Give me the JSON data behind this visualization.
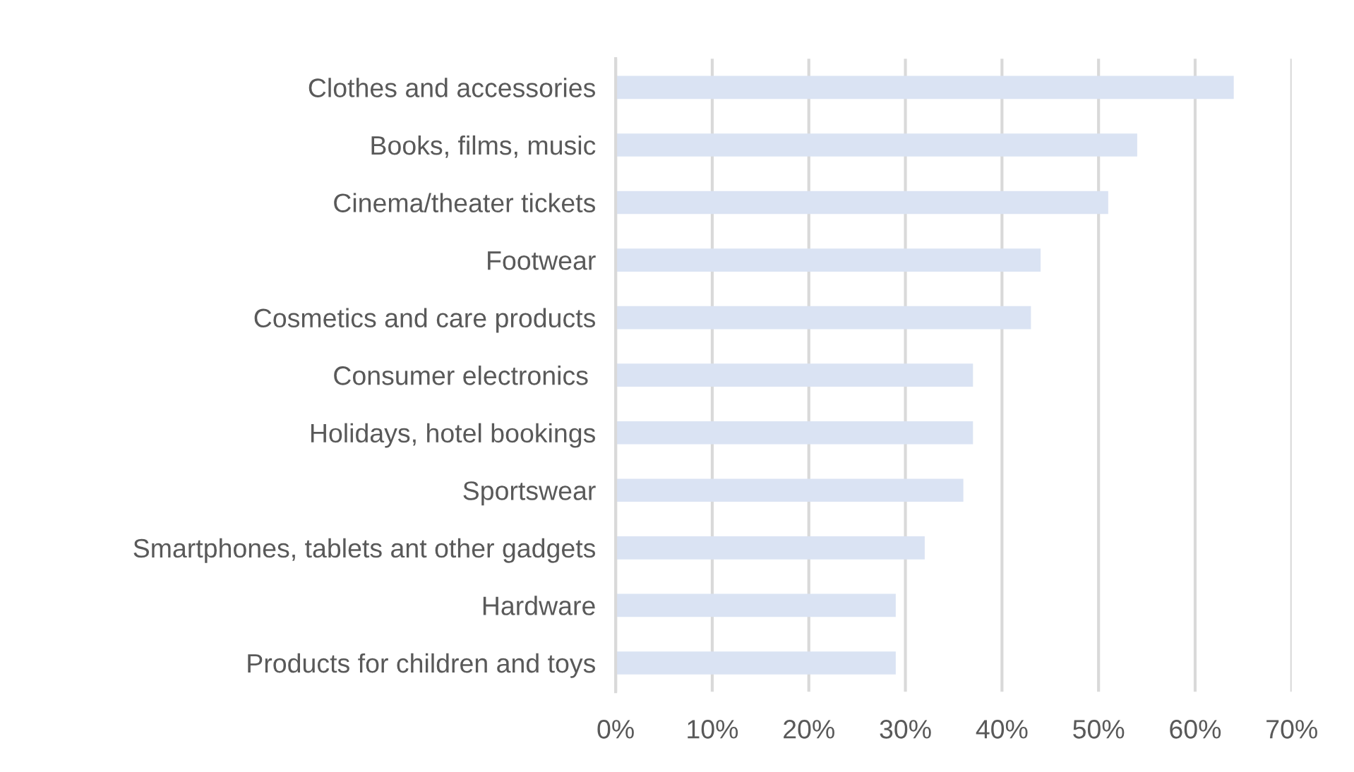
{
  "chart_data": {
    "type": "bar",
    "orientation": "horizontal",
    "categories": [
      "Clothes and accessories",
      "Books, films, music",
      "Cinema/theater tickets",
      "Footwear",
      "Cosmetics and care products",
      "Consumer electronics ",
      "Holidays, hotel bookings",
      "Sportswear",
      "Smartphones, tablets ant other gadgets",
      "Hardware",
      "Products for children and toys"
    ],
    "values": [
      0.64,
      0.54,
      0.51,
      0.44,
      0.43,
      0.37,
      0.37,
      0.36,
      0.32,
      0.29,
      0.29
    ],
    "color": "#dae3f3",
    "xlim": [
      0,
      0.7
    ],
    "xticks": [
      {
        "value": 0,
        "label": "0%"
      },
      {
        "value": 0.1,
        "label": "10%"
      },
      {
        "value": 0.2,
        "label": "20%"
      },
      {
        "value": 0.3,
        "label": "30%"
      },
      {
        "value": 0.4,
        "label": "40%"
      },
      {
        "value": 0.5,
        "label": "50%"
      },
      {
        "value": 0.6,
        "label": "60%"
      },
      {
        "value": 0.7,
        "label": "70%"
      }
    ],
    "grid": "x"
  }
}
